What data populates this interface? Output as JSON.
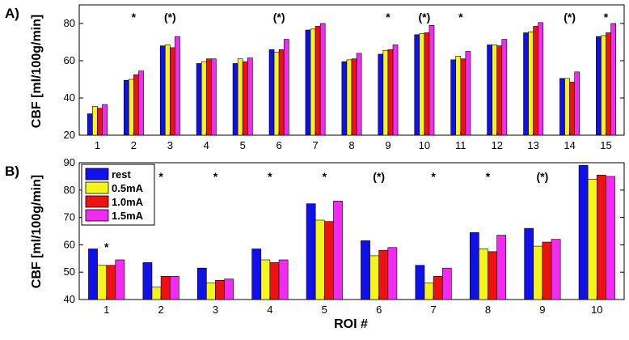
{
  "colors": {
    "rest": "#1010e8",
    "0.5mA": "#f5f51e",
    "1.0mA": "#ee1111",
    "1.5mA": "#ef2cef",
    "axis": "#000000",
    "background": "#ffffff"
  },
  "legend": {
    "entries": [
      {
        "label": "rest",
        "key": "rest"
      },
      {
        "label": "0.5mA",
        "key": "0.5mA"
      },
      {
        "label": "1.0mA",
        "key": "1.0mA"
      },
      {
        "label": "1.5mA",
        "key": "1.5mA"
      }
    ],
    "placement": "top-left of panel B"
  },
  "x_axis_common_label": "ROI #",
  "chart_data": [
    {
      "type": "bar",
      "panel_label": "A)",
      "title": "",
      "xlabel": "",
      "ylabel": "CBF [ml/100g/min]",
      "ylim": [
        20,
        90
      ],
      "yticks": [
        20,
        40,
        60,
        80
      ],
      "categories": [
        "1",
        "2",
        "3",
        "4",
        "5",
        "6",
        "7",
        "8",
        "9",
        "10",
        "11",
        "12",
        "13",
        "14",
        "15"
      ],
      "series": [
        {
          "name": "rest",
          "values": [
            31.5,
            49.5,
            68.0,
            58.5,
            58.5,
            66.0,
            76.5,
            59.5,
            63.5,
            74.0,
            60.5,
            68.5,
            75.0,
            50.5,
            73.0
          ]
        },
        {
          "name": "0.5mA",
          "values": [
            35.5,
            50.0,
            68.5,
            59.5,
            61.0,
            64.5,
            77.0,
            60.5,
            65.5,
            74.5,
            62.5,
            68.5,
            75.5,
            50.5,
            73.5
          ]
        },
        {
          "name": "1.0mA",
          "values": [
            34.5,
            52.5,
            67.0,
            61.0,
            59.5,
            66.0,
            78.5,
            61.0,
            66.0,
            75.0,
            61.0,
            68.0,
            78.5,
            48.5,
            75.0
          ]
        },
        {
          "name": "1.5mA",
          "values": [
            36.5,
            54.5,
            73.0,
            61.0,
            61.5,
            71.5,
            80.0,
            64.0,
            68.5,
            79.0,
            65.0,
            71.5,
            80.5,
            54.0,
            80.0
          ]
        }
      ],
      "annotations": [
        "",
        "*",
        "(*)",
        "",
        "",
        "(*)",
        "",
        "",
        "*",
        "(*)",
        "*",
        "",
        "",
        "(*)",
        "*"
      ]
    },
    {
      "type": "bar",
      "panel_label": "B)",
      "title": "",
      "xlabel": "ROI #",
      "ylabel": "CBF [ml/100g/min]",
      "ylim": [
        40,
        90
      ],
      "yticks": [
        40,
        50,
        60,
        70,
        80,
        90
      ],
      "categories": [
        "1",
        "2",
        "3",
        "4",
        "5",
        "6",
        "7",
        "8",
        "9",
        "10"
      ],
      "series": [
        {
          "name": "rest",
          "values": [
            58.5,
            53.5,
            51.5,
            58.5,
            75.0,
            61.5,
            52.5,
            64.5,
            66.0,
            89.0
          ]
        },
        {
          "name": "0.5mA",
          "values": [
            52.5,
            44.5,
            46.0,
            54.5,
            69.0,
            56.0,
            46.0,
            58.5,
            59.5,
            84.0
          ]
        },
        {
          "name": "1.0mA",
          "values": [
            52.5,
            48.5,
            47.0,
            53.5,
            68.5,
            58.0,
            48.5,
            57.5,
            61.0,
            85.5
          ]
        },
        {
          "name": "1.5mA",
          "values": [
            54.5,
            48.5,
            47.5,
            54.5,
            76.0,
            59.0,
            51.5,
            63.5,
            62.0,
            85.0
          ]
        }
      ],
      "annotations": [
        "*",
        "*",
        "*",
        "*",
        "*",
        "(*)",
        "*",
        "*",
        "(*)",
        ""
      ]
    }
  ]
}
